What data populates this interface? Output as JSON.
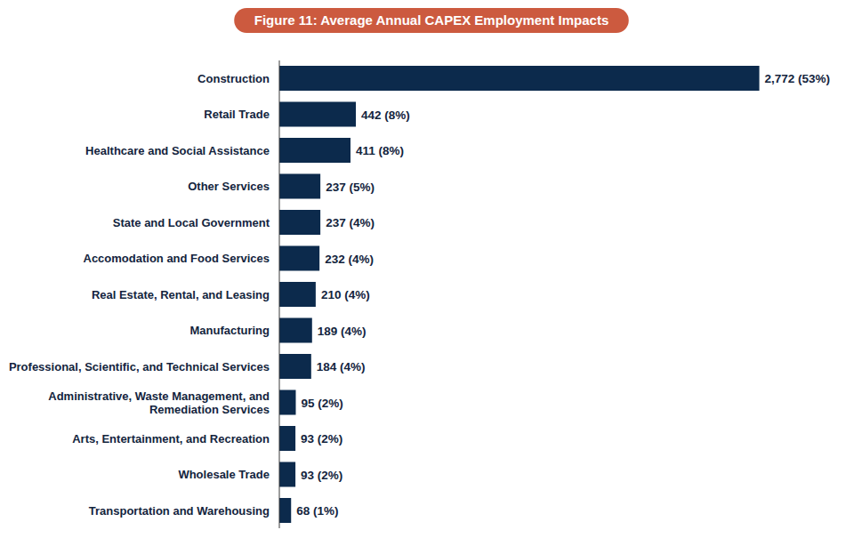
{
  "chart_data": {
    "type": "bar",
    "orientation": "horizontal",
    "title": "Figure 11: Average Annual CAPEX Employment Impacts",
    "categories": [
      "Construction",
      "Retail Trade",
      "Healthcare and Social Assistance",
      "Other Services",
      "State and Local Government",
      "Accomodation and Food Services",
      "Real Estate, Rental, and Leasing",
      "Manufacturing",
      "Professional, Scientific, and Technical Services",
      "Administrative, Waste Management, and Remediation Services",
      "Arts, Entertainment, and Recreation",
      "Wholesale Trade",
      "Transportation and Warehousing"
    ],
    "values": [
      2772,
      442,
      411,
      237,
      237,
      232,
      210,
      189,
      184,
      95,
      93,
      93,
      68
    ],
    "value_labels": [
      "2,772 (53%)",
      "442 (8%)",
      "411 (8%)",
      "237 (5%)",
      "237 (4%)",
      "232 (4%)",
      "210 (4%)",
      "189 (4%)",
      "184 (4%)",
      "95 (2%)",
      "93 (2%)",
      "93 (2%)",
      "68 (1%)"
    ],
    "color": "#0c2a4c",
    "xlim": [
      0,
      2800
    ],
    "grid": false,
    "data_labels": true,
    "tick_labels": "y"
  }
}
